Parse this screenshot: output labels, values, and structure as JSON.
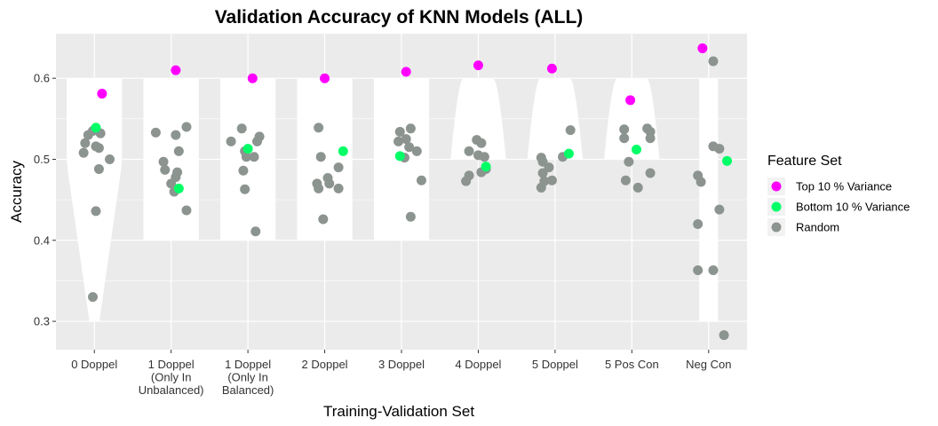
{
  "chart_data": {
    "type": "scatter",
    "title": "Validation Accuracy of KNN Models (ALL)",
    "xlabel": "Training-Validation Set",
    "ylabel": "Accuracy",
    "ylim": [
      0.265,
      0.655
    ],
    "yticks": [
      0.3,
      0.4,
      0.5,
      0.6
    ],
    "ytick_labels": [
      "0.3",
      "0.4",
      "0.5",
      "0.6"
    ],
    "grid": true,
    "background": "#ebebeb",
    "categories": [
      [
        "0 Doppel"
      ],
      [
        "1 Doppel",
        "(Only In",
        "Unbalanced)"
      ],
      [
        "1 Doppel",
        "(Only In",
        "Balanced)"
      ],
      [
        "2 Doppel"
      ],
      [
        "3 Doppel"
      ],
      [
        "4 Doppel"
      ],
      [
        "5 Doppel"
      ],
      [
        "5 Pos Con"
      ],
      [
        "Neg Con"
      ]
    ],
    "violins": [
      {
        "min": 0.3,
        "max": 0.6,
        "shape": "bottom-tapered"
      },
      {
        "min": 0.4,
        "max": 0.6,
        "shape": "uniform"
      },
      {
        "min": 0.4,
        "max": 0.6,
        "shape": "uniform"
      },
      {
        "min": 0.4,
        "max": 0.6,
        "shape": "uniform"
      },
      {
        "min": 0.4,
        "max": 0.6,
        "shape": "uniform"
      },
      {
        "min": 0.5,
        "max": 0.6,
        "shape": "top-tapered"
      },
      {
        "min": 0.5,
        "max": 0.6,
        "shape": "top-tapered"
      },
      {
        "min": 0.5,
        "max": 0.6,
        "shape": "top-tapered"
      },
      {
        "min": 0.3,
        "max": 0.6,
        "shape": "narrow"
      }
    ],
    "legend": {
      "title": "Feature Set",
      "position": "right",
      "entries": [
        {
          "label": "Top 10 % Variance",
          "color": "#ff00ff"
        },
        {
          "label": "Bottom 10 % Variance",
          "color": "#00ff66"
        },
        {
          "label": "Random",
          "color": "#8c9490"
        }
      ]
    },
    "series": [
      {
        "name": "Random",
        "color": "#8c9490",
        "points": [
          {
            "x": 1,
            "dx": -0.14,
            "y": 0.508
          },
          {
            "x": 1,
            "dx": -0.12,
            "y": 0.52
          },
          {
            "x": 1,
            "dx": -0.08,
            "y": 0.53
          },
          {
            "x": 1,
            "dx": -0.02,
            "y": 0.535
          },
          {
            "x": 1,
            "dx": 0.08,
            "y": 0.532
          },
          {
            "x": 1,
            "dx": 0.02,
            "y": 0.516
          },
          {
            "x": 1,
            "dx": 0.06,
            "y": 0.514
          },
          {
            "x": 1,
            "dx": 0.2,
            "y": 0.5
          },
          {
            "x": 1,
            "dx": 0.06,
            "y": 0.488
          },
          {
            "x": 1,
            "dx": 0.02,
            "y": 0.436
          },
          {
            "x": 1,
            "dx": -0.02,
            "y": 0.33
          },
          {
            "x": 2,
            "dx": -0.2,
            "y": 0.533
          },
          {
            "x": 2,
            "dx": 0.06,
            "y": 0.53
          },
          {
            "x": 2,
            "dx": 0.2,
            "y": 0.54
          },
          {
            "x": 2,
            "dx": 0.1,
            "y": 0.51
          },
          {
            "x": 2,
            "dx": -0.1,
            "y": 0.497
          },
          {
            "x": 2,
            "dx": -0.08,
            "y": 0.487
          },
          {
            "x": 2,
            "dx": 0.08,
            "y": 0.484
          },
          {
            "x": 2,
            "dx": 0.06,
            "y": 0.478
          },
          {
            "x": 2,
            "dx": 0.0,
            "y": 0.47
          },
          {
            "x": 2,
            "dx": 0.04,
            "y": 0.46
          },
          {
            "x": 2,
            "dx": 0.2,
            "y": 0.437
          },
          {
            "x": 3,
            "dx": -0.22,
            "y": 0.522
          },
          {
            "x": 3,
            "dx": -0.08,
            "y": 0.538
          },
          {
            "x": 3,
            "dx": 0.15,
            "y": 0.528
          },
          {
            "x": 3,
            "dx": 0.12,
            "y": 0.522
          },
          {
            "x": 3,
            "dx": -0.04,
            "y": 0.51
          },
          {
            "x": 3,
            "dx": -0.02,
            "y": 0.503
          },
          {
            "x": 3,
            "dx": 0.08,
            "y": 0.503
          },
          {
            "x": 3,
            "dx": -0.06,
            "y": 0.486
          },
          {
            "x": 3,
            "dx": -0.04,
            "y": 0.463
          },
          {
            "x": 3,
            "dx": 0.1,
            "y": 0.411
          },
          {
            "x": 4,
            "dx": -0.08,
            "y": 0.539
          },
          {
            "x": 4,
            "dx": -0.05,
            "y": 0.503
          },
          {
            "x": 4,
            "dx": 0.18,
            "y": 0.49
          },
          {
            "x": 4,
            "dx": 0.04,
            "y": 0.477
          },
          {
            "x": 4,
            "dx": -0.1,
            "y": 0.47
          },
          {
            "x": 4,
            "dx": 0.06,
            "y": 0.47
          },
          {
            "x": 4,
            "dx": -0.08,
            "y": 0.464
          },
          {
            "x": 4,
            "dx": 0.18,
            "y": 0.464
          },
          {
            "x": 4,
            "dx": -0.02,
            "y": 0.426
          },
          {
            "x": 5,
            "dx": -0.02,
            "y": 0.534
          },
          {
            "x": 5,
            "dx": 0.12,
            "y": 0.538
          },
          {
            "x": 5,
            "dx": -0.04,
            "y": 0.522
          },
          {
            "x": 5,
            "dx": 0.06,
            "y": 0.525
          },
          {
            "x": 5,
            "dx": 0.1,
            "y": 0.515
          },
          {
            "x": 5,
            "dx": 0.2,
            "y": 0.51
          },
          {
            "x": 5,
            "dx": 0.04,
            "y": 0.502
          },
          {
            "x": 5,
            "dx": 0.26,
            "y": 0.474
          },
          {
            "x": 5,
            "dx": 0.12,
            "y": 0.429
          },
          {
            "x": 6,
            "dx": -0.12,
            "y": 0.51
          },
          {
            "x": 6,
            "dx": -0.02,
            "y": 0.524
          },
          {
            "x": 6,
            "dx": 0.04,
            "y": 0.52
          },
          {
            "x": 6,
            "dx": 0.0,
            "y": 0.505
          },
          {
            "x": 6,
            "dx": 0.08,
            "y": 0.503
          },
          {
            "x": 6,
            "dx": 0.1,
            "y": 0.488
          },
          {
            "x": 6,
            "dx": 0.04,
            "y": 0.484
          },
          {
            "x": 6,
            "dx": -0.12,
            "y": 0.48
          },
          {
            "x": 6,
            "dx": -0.16,
            "y": 0.473
          },
          {
            "x": 7,
            "dx": 0.2,
            "y": 0.536
          },
          {
            "x": 7,
            "dx": -0.18,
            "y": 0.502
          },
          {
            "x": 7,
            "dx": -0.16,
            "y": 0.497
          },
          {
            "x": 7,
            "dx": -0.08,
            "y": 0.49
          },
          {
            "x": 7,
            "dx": -0.16,
            "y": 0.483
          },
          {
            "x": 7,
            "dx": -0.14,
            "y": 0.473
          },
          {
            "x": 7,
            "dx": 0.1,
            "y": 0.503
          },
          {
            "x": 7,
            "dx": -0.04,
            "y": 0.474
          },
          {
            "x": 7,
            "dx": -0.18,
            "y": 0.465
          },
          {
            "x": 8,
            "dx": -0.1,
            "y": 0.537
          },
          {
            "x": 8,
            "dx": 0.2,
            "y": 0.538
          },
          {
            "x": 8,
            "dx": -0.1,
            "y": 0.526
          },
          {
            "x": 8,
            "dx": 0.24,
            "y": 0.526
          },
          {
            "x": 8,
            "dx": 0.24,
            "y": 0.534
          },
          {
            "x": 8,
            "dx": -0.04,
            "y": 0.497
          },
          {
            "x": 8,
            "dx": 0.24,
            "y": 0.483
          },
          {
            "x": 8,
            "dx": -0.08,
            "y": 0.474
          },
          {
            "x": 8,
            "dx": 0.08,
            "y": 0.465
          },
          {
            "x": 9,
            "dx": 0.06,
            "y": 0.621
          },
          {
            "x": 9,
            "dx": 0.06,
            "y": 0.516
          },
          {
            "x": 9,
            "dx": 0.14,
            "y": 0.513
          },
          {
            "x": 9,
            "dx": -0.14,
            "y": 0.48
          },
          {
            "x": 9,
            "dx": -0.1,
            "y": 0.472
          },
          {
            "x": 9,
            "dx": -0.14,
            "y": 0.42
          },
          {
            "x": 9,
            "dx": 0.14,
            "y": 0.438
          },
          {
            "x": 9,
            "dx": -0.14,
            "y": 0.363
          },
          {
            "x": 9,
            "dx": 0.06,
            "y": 0.363
          },
          {
            "x": 9,
            "dx": 0.2,
            "y": 0.283
          }
        ]
      },
      {
        "name": "Top 10 % Variance",
        "color": "#ff00ff",
        "points": [
          {
            "x": 1,
            "dx": 0.1,
            "y": 0.581
          },
          {
            "x": 2,
            "dx": 0.06,
            "y": 0.61
          },
          {
            "x": 3,
            "dx": 0.06,
            "y": 0.6
          },
          {
            "x": 4,
            "dx": 0.0,
            "y": 0.6
          },
          {
            "x": 5,
            "dx": 0.06,
            "y": 0.608
          },
          {
            "x": 6,
            "dx": 0.0,
            "y": 0.616
          },
          {
            "x": 7,
            "dx": -0.04,
            "y": 0.612
          },
          {
            "x": 8,
            "dx": -0.02,
            "y": 0.573
          },
          {
            "x": 9,
            "dx": -0.08,
            "y": 0.637
          }
        ]
      },
      {
        "name": "Bottom 10 % Variance",
        "color": "#00ff66",
        "points": [
          {
            "x": 1,
            "dx": 0.02,
            "y": 0.539
          },
          {
            "x": 2,
            "dx": 0.1,
            "y": 0.464
          },
          {
            "x": 3,
            "dx": 0.0,
            "y": 0.513
          },
          {
            "x": 4,
            "dx": 0.24,
            "y": 0.51
          },
          {
            "x": 5,
            "dx": -0.02,
            "y": 0.504
          },
          {
            "x": 6,
            "dx": 0.1,
            "y": 0.491
          },
          {
            "x": 7,
            "dx": 0.18,
            "y": 0.507
          },
          {
            "x": 8,
            "dx": 0.06,
            "y": 0.512
          },
          {
            "x": 9,
            "dx": 0.24,
            "y": 0.498
          }
        ]
      }
    ]
  }
}
